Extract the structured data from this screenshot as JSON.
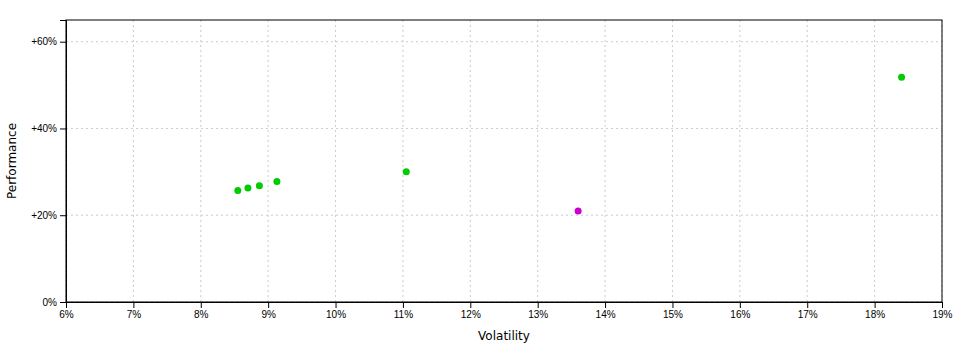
{
  "chart_data": {
    "type": "scatter",
    "xlabel": "Volatility",
    "ylabel": "Performance",
    "xlim": [
      0.06,
      0.19
    ],
    "ylim": [
      0.0,
      0.65
    ],
    "xticks": [
      {
        "value": 0.06,
        "label": "6%"
      },
      {
        "value": 0.07,
        "label": "7%"
      },
      {
        "value": 0.08,
        "label": "8%"
      },
      {
        "value": 0.09,
        "label": "9%"
      },
      {
        "value": 0.1,
        "label": "10%"
      },
      {
        "value": 0.11,
        "label": "11%"
      },
      {
        "value": 0.12,
        "label": "12%"
      },
      {
        "value": 0.13,
        "label": "13%"
      },
      {
        "value": 0.14,
        "label": "14%"
      },
      {
        "value": 0.15,
        "label": "15%"
      },
      {
        "value": 0.16,
        "label": "16%"
      },
      {
        "value": 0.17,
        "label": "17%"
      },
      {
        "value": 0.18,
        "label": "18%"
      },
      {
        "value": 0.19,
        "label": "19%"
      }
    ],
    "yticks": [
      {
        "value": 0.0,
        "label": "0%"
      },
      {
        "value": 0.2,
        "label": "+20%"
      },
      {
        "value": 0.4,
        "label": "+40%"
      },
      {
        "value": 0.6,
        "label": "+60%"
      }
    ],
    "grid": true,
    "series": [
      {
        "color": "#00cc00",
        "x": [
          0.0855,
          0.087,
          0.0887,
          0.0913,
          0.1105,
          0.184
        ],
        "values": [
          0.257,
          0.263,
          0.268,
          0.278,
          0.3,
          0.518
        ]
      },
      {
        "color": "#cc00cc",
        "x": [
          0.136
        ],
        "values": [
          0.21
        ]
      }
    ]
  }
}
